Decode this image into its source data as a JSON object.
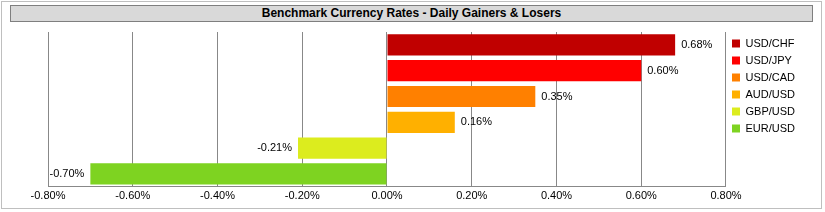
{
  "chart_data": {
    "type": "bar",
    "title": "Benchmark Currency Rates - Daily Gainers & Losers",
    "orientation": "horizontal",
    "categories": [
      "USD/CHF",
      "USD/JPY",
      "USD/CAD",
      "AUD/USD",
      "GBP/USD",
      "EUR/USD"
    ],
    "values": [
      0.68,
      0.6,
      0.35,
      0.16,
      -0.21,
      -0.7
    ],
    "value_labels": [
      "0.68%",
      "0.60%",
      "0.35%",
      "0.16%",
      "-0.21%",
      "-0.70%"
    ],
    "colors": [
      "#c00000",
      "#ff0000",
      "#ff8000",
      "#ffb000",
      "#dcec1e",
      "#7ed321"
    ],
    "xlim": [
      -0.8,
      0.8
    ],
    "xticks": [
      {
        "value": -0.8,
        "label": "-0.80%"
      },
      {
        "value": -0.6,
        "label": "-0.60%"
      },
      {
        "value": -0.4,
        "label": "-0.40%"
      },
      {
        "value": -0.2,
        "label": "-0.20%"
      },
      {
        "value": 0,
        "label": "0.00%"
      },
      {
        "value": 0.2,
        "label": "0.20%"
      },
      {
        "value": 0.4,
        "label": "0.40%"
      },
      {
        "value": 0.6,
        "label": "0.60%"
      },
      {
        "value": 0.8,
        "label": "0.80%"
      }
    ],
    "grid": true,
    "legend": "right",
    "data_labels": true,
    "tick_labels": "x"
  }
}
